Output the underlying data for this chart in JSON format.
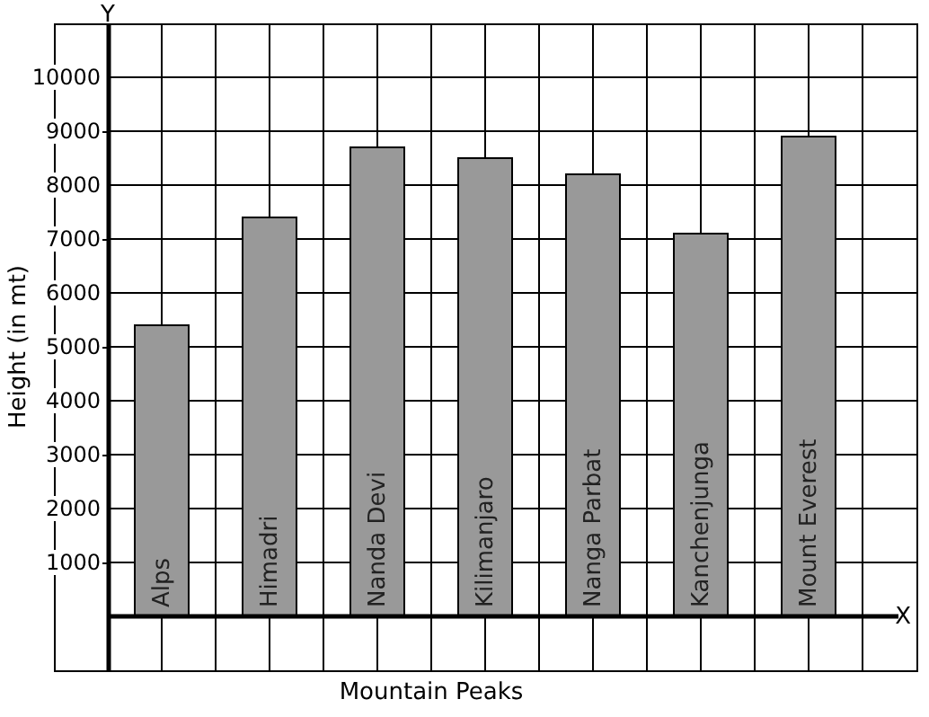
{
  "chart_data": {
    "type": "bar",
    "xlabel": "Mountain Peaks",
    "ylabel": "Height (in mt)",
    "categories": [
      "Alps",
      "Himadri",
      "Nanda Devi",
      "Kilimanjaro",
      "Nanga Parbat",
      "Kanchenjunga",
      "Mount Everest"
    ],
    "values": [
      5400,
      7400,
      8700,
      8500,
      8200,
      7100,
      8900
    ],
    "color": "#999999",
    "ylim": [
      -1000,
      11000
    ],
    "yticks": [
      1000,
      2000,
      3000,
      4000,
      5000,
      6000,
      7000,
      8000,
      9000,
      10000
    ],
    "grid": true,
    "annotations": [
      "X",
      "Y"
    ]
  }
}
